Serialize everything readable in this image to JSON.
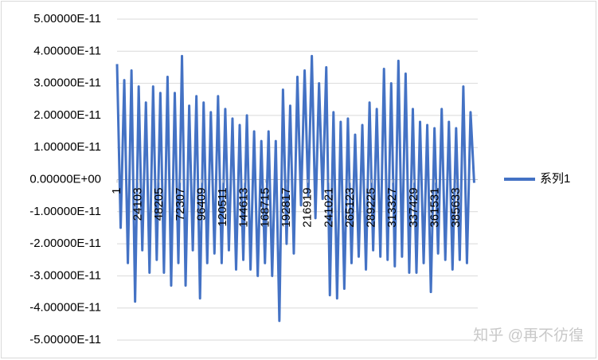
{
  "chart_data": {
    "type": "line",
    "x": [
      1,
      4101,
      8201,
      12301,
      16401,
      20501,
      24601,
      28701,
      32801,
      36901,
      41001,
      45101,
      49201,
      53301,
      57401,
      61501,
      65601,
      69701,
      73801,
      77901,
      82001,
      86101,
      90201,
      94301,
      98401,
      102501,
      106601,
      110701,
      114801,
      118901,
      123001,
      127101,
      131201,
      135301,
      139401,
      143501,
      147601,
      151701,
      155801,
      159901,
      164001,
      168101,
      172201,
      176301,
      180401,
      184501,
      188601,
      192701,
      196801,
      200901,
      205001,
      209101,
      213201,
      217301,
      221401,
      225501,
      229601,
      233701,
      237801,
      241901,
      246001,
      250101,
      254201,
      258301,
      262401,
      266501,
      270601,
      274701,
      278801,
      282901,
      287001,
      291101,
      295201,
      299301,
      303401,
      307501,
      311601,
      315701,
      319801,
      323901,
      328001,
      332101,
      336201,
      340301,
      344401,
      348501,
      352601,
      356701,
      360801,
      364901,
      369001,
      373101,
      377201,
      381301,
      385401,
      389501,
      393601,
      397701,
      401801,
      405901
    ],
    "series": [
      {
        "name": "系列1",
        "color": "#4472c4",
        "values": [
          3.6e-11,
          -1.5e-11,
          3.1e-11,
          -2.6e-11,
          3.4e-11,
          -3.8e-11,
          2.9e-11,
          -2.2e-11,
          2.4e-11,
          -2.9e-11,
          2.9e-11,
          -2.5e-11,
          2.7e-11,
          -2.9e-11,
          3.2e-11,
          -3.3e-11,
          2.7e-11,
          -2.6e-11,
          3.85e-11,
          -3.3e-11,
          2.3e-11,
          -2.2e-11,
          2.6e-11,
          -3.7e-11,
          2.4e-11,
          -2.6e-11,
          2.1e-11,
          -2.3e-11,
          2.6e-11,
          -2.6e-11,
          2.2e-11,
          -2.2e-11,
          1.9e-11,
          -2.8e-11,
          1.7e-11,
          -2.5e-11,
          2e-11,
          -2.8e-11,
          1.5e-11,
          -3e-11,
          1.2e-11,
          -2.6e-11,
          1.5e-11,
          -3e-11,
          1.2e-11,
          -4.4e-11,
          2.8e-11,
          -2e-11,
          2.3e-11,
          -2.3e-11,
          3.2e-11,
          -8e-12,
          3.4e-11,
          -5e-12,
          3.85e-11,
          -1.2e-11,
          3e-11,
          -6e-12,
          3.5e-11,
          -3.6e-11,
          2.1e-11,
          -3.7e-11,
          1.8e-11,
          -3.4e-11,
          1.9e-11,
          -2.6e-11,
          1.4e-11,
          -2.4e-11,
          1.7e-11,
          -2.8e-11,
          2.4e-11,
          -2.2e-11,
          2.2e-11,
          -2.4e-11,
          3.45e-11,
          -2.5e-11,
          3e-11,
          -2.7e-11,
          3.7e-11,
          -2.4e-11,
          3.3e-11,
          -2.9e-11,
          2.2e-11,
          -2.9e-11,
          1.8e-11,
          -2.6e-11,
          1.7e-11,
          -3.5e-11,
          1.6e-11,
          -2.3e-11,
          2.2e-11,
          -2.5e-11,
          1.8e-11,
          -2.8e-11,
          1.6e-11,
          -2.5e-11,
          2.9e-11,
          -2.6e-11,
          2.1e-11,
          -1e-12
        ]
      }
    ],
    "xlim": [
      1,
      410000
    ],
    "xticks": [
      1,
      24103,
      48205,
      72307,
      96409,
      120511,
      144613,
      168715,
      192817,
      216919,
      241021,
      265123,
      289225,
      313327,
      337429,
      361531,
      385633
    ],
    "ylim": [
      -5e-11,
      5e-11
    ],
    "yticks": [
      {
        "value": -5e-11,
        "label": "-5.00000E-11"
      },
      {
        "value": -4e-11,
        "label": "-4.00000E-11"
      },
      {
        "value": -3e-11,
        "label": "-3.00000E-11"
      },
      {
        "value": -2e-11,
        "label": "-2.00000E-11"
      },
      {
        "value": -1e-11,
        "label": "-1.00000E-11"
      },
      {
        "value": 0,
        "label": "0.00000E+00"
      },
      {
        "value": 1e-11,
        "label": "1.00000E-11"
      },
      {
        "value": 2e-11,
        "label": "2.00000E-11"
      },
      {
        "value": 3e-11,
        "label": "3.00000E-11"
      },
      {
        "value": 4e-11,
        "label": "4.00000E-11"
      },
      {
        "value": 5e-11,
        "label": "5.00000E-11"
      }
    ],
    "grid": true,
    "legend": "right",
    "watermark": "知乎 @再不彷徨"
  }
}
